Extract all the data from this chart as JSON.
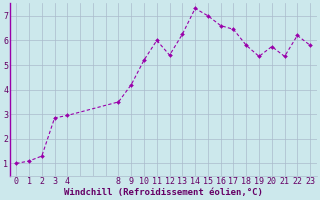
{
  "x": [
    0,
    1,
    2,
    3,
    4,
    8,
    9,
    10,
    11,
    12,
    13,
    14,
    15,
    16,
    17,
    18,
    19,
    20,
    21,
    22,
    23
  ],
  "y": [
    1.0,
    1.1,
    1.3,
    2.85,
    2.95,
    3.5,
    4.2,
    5.2,
    6.0,
    5.4,
    6.25,
    7.3,
    7.0,
    6.6,
    6.45,
    5.8,
    5.35,
    5.75,
    5.35,
    6.2,
    5.8
  ],
  "line_color": "#9900aa",
  "marker_color": "#9900aa",
  "bg_color": "#cce8ec",
  "grid_color": "#aabbcc",
  "xlabel": "Windchill (Refroidissement éolien,°C)",
  "xlim": [
    -0.5,
    23.5
  ],
  "ylim": [
    0.5,
    7.5
  ],
  "yticks": [
    1,
    2,
    3,
    4,
    5,
    6,
    7
  ],
  "xtick_labels": [
    "0",
    "1",
    "2",
    "3",
    "4",
    "",
    "",
    "",
    "8",
    "9",
    "10",
    "11",
    "12",
    "13",
    "14",
    "15",
    "16",
    "17",
    "18",
    "19",
    "20",
    "21",
    "22",
    "23"
  ],
  "xlabel_color": "#660066",
  "tick_color": "#660066",
  "font_size_xlabel": 6.5,
  "font_size_tick": 6
}
